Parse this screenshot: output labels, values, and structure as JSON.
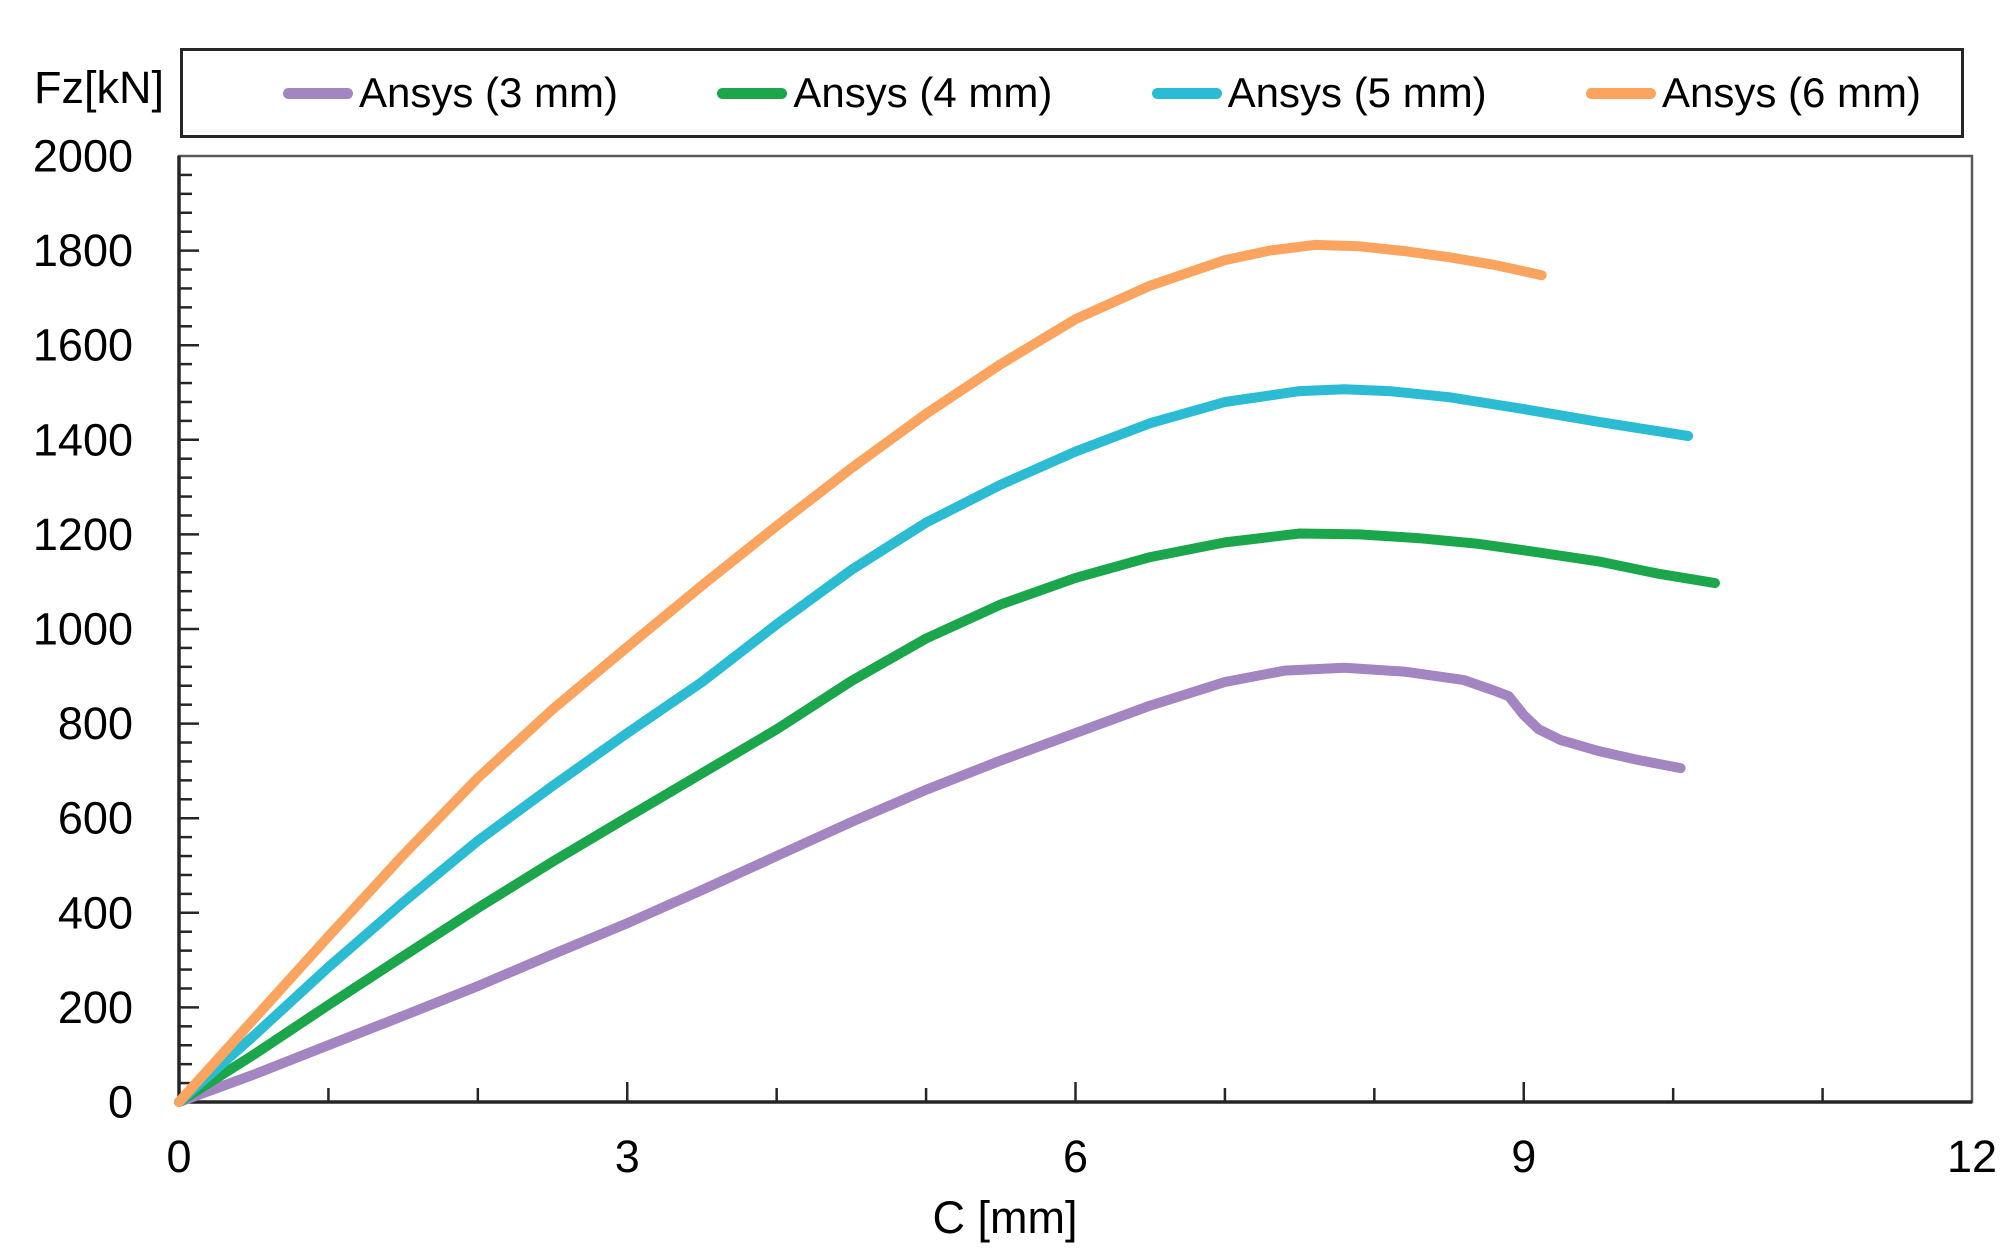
{
  "page": {
    "background": "#ffffff"
  },
  "chart_data": {
    "type": "line",
    "title": "",
    "xlabel": "C [mm]",
    "ylabel": "Fz[kN]",
    "xlim": [
      0,
      12
    ],
    "ylim": [
      0,
      2000
    ],
    "x_major_step": 3,
    "x_minor_step": 1,
    "y_major_step": 200,
    "y_minor_step": 40,
    "x_tick_labels": [
      "0",
      "3",
      "6",
      "9",
      "12"
    ],
    "y_tick_labels": [
      "0",
      "200",
      "400",
      "600",
      "800",
      "1000",
      "1200",
      "1400",
      "1600",
      "1800",
      "2000"
    ],
    "grid": false,
    "legend_position": "top",
    "axis_color": "#262626",
    "border_color": "#595959",
    "text_color": "#000000",
    "series": [
      {
        "name": "Ansys (3 mm)",
        "color": "#A285C1",
        "points": [
          [
            0,
            0
          ],
          [
            0.5,
            58
          ],
          [
            1,
            120
          ],
          [
            1.5,
            182
          ],
          [
            2,
            245
          ],
          [
            2.5,
            312
          ],
          [
            3,
            378
          ],
          [
            3.5,
            448
          ],
          [
            4,
            520
          ],
          [
            4.5,
            592
          ],
          [
            5,
            660
          ],
          [
            5.5,
            722
          ],
          [
            6,
            780
          ],
          [
            6.5,
            838
          ],
          [
            7,
            888
          ],
          [
            7.4,
            912
          ],
          [
            7.8,
            918
          ],
          [
            8.2,
            910
          ],
          [
            8.6,
            892
          ],
          [
            8.8,
            870
          ],
          [
            8.9,
            858
          ],
          [
            9.0,
            818
          ],
          [
            9.1,
            788
          ],
          [
            9.25,
            765
          ],
          [
            9.5,
            742
          ],
          [
            9.75,
            724
          ],
          [
            10.05,
            706
          ]
        ]
      },
      {
        "name": "Ansys (4 mm)",
        "color": "#1CA64C",
        "points": [
          [
            0,
            0
          ],
          [
            0.5,
            100
          ],
          [
            1,
            205
          ],
          [
            1.5,
            308
          ],
          [
            2,
            410
          ],
          [
            2.5,
            508
          ],
          [
            3,
            602
          ],
          [
            3.5,
            695
          ],
          [
            4,
            788
          ],
          [
            4.5,
            890
          ],
          [
            5,
            980
          ],
          [
            5.5,
            1052
          ],
          [
            6,
            1108
          ],
          [
            6.5,
            1152
          ],
          [
            7,
            1183
          ],
          [
            7.5,
            1202
          ],
          [
            7.9,
            1200
          ],
          [
            8.3,
            1192
          ],
          [
            8.7,
            1180
          ],
          [
            9.1,
            1162
          ],
          [
            9.5,
            1143
          ],
          [
            9.9,
            1117
          ],
          [
            10.28,
            1097
          ]
        ]
      },
      {
        "name": "Ansys (5 mm)",
        "color": "#2BBCD4",
        "points": [
          [
            0,
            0
          ],
          [
            0.5,
            140
          ],
          [
            1,
            285
          ],
          [
            1.5,
            422
          ],
          [
            2,
            552
          ],
          [
            2.5,
            668
          ],
          [
            3,
            780
          ],
          [
            3.5,
            888
          ],
          [
            4,
            1010
          ],
          [
            4.5,
            1125
          ],
          [
            5,
            1225
          ],
          [
            5.5,
            1305
          ],
          [
            6,
            1375
          ],
          [
            6.5,
            1435
          ],
          [
            7,
            1480
          ],
          [
            7.5,
            1503
          ],
          [
            7.8,
            1507
          ],
          [
            8.1,
            1503
          ],
          [
            8.5,
            1490
          ],
          [
            9,
            1465
          ],
          [
            9.5,
            1438
          ],
          [
            10.1,
            1408
          ]
        ]
      },
      {
        "name": "Ansys (6 mm)",
        "color": "#FAA45F",
        "points": [
          [
            0,
            0
          ],
          [
            0.5,
            175
          ],
          [
            1,
            350
          ],
          [
            1.5,
            522
          ],
          [
            2,
            685
          ],
          [
            2.5,
            830
          ],
          [
            3,
            962
          ],
          [
            3.5,
            1092
          ],
          [
            4,
            1218
          ],
          [
            4.5,
            1340
          ],
          [
            5,
            1455
          ],
          [
            5.5,
            1560
          ],
          [
            6,
            1655
          ],
          [
            6.5,
            1726
          ],
          [
            7,
            1780
          ],
          [
            7.3,
            1800
          ],
          [
            7.6,
            1812
          ],
          [
            7.9,
            1809
          ],
          [
            8.2,
            1799
          ],
          [
            8.5,
            1786
          ],
          [
            8.8,
            1770
          ],
          [
            9.12,
            1748
          ]
        ]
      }
    ]
  }
}
